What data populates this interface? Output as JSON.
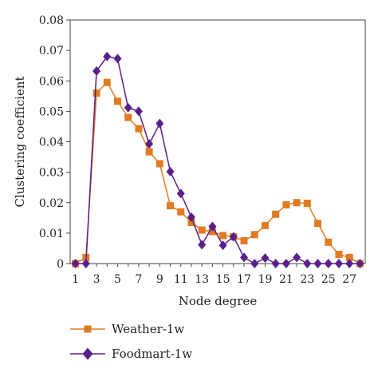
{
  "chart_data": {
    "type": "line",
    "xlabel": "Node degree",
    "ylabel": "Clustering coefficient",
    "xlim": [
      1,
      28
    ],
    "ylim": [
      0,
      0.08
    ],
    "yticks": [
      "0",
      "0.01",
      "0.02",
      "0.03",
      "0.04",
      "0.05",
      "0.06",
      "0.07",
      "0.08"
    ],
    "xticks": [
      "1",
      "3",
      "5",
      "7",
      "9",
      "11",
      "13",
      "15",
      "17",
      "19",
      "21",
      "23",
      "25",
      "27"
    ],
    "x": [
      1,
      2,
      3,
      4,
      5,
      6,
      7,
      8,
      9,
      10,
      11,
      12,
      13,
      14,
      15,
      16,
      17,
      18,
      19,
      20,
      21,
      22,
      23,
      24,
      25,
      26,
      27,
      28
    ],
    "legend_position": "bottom",
    "series": [
      {
        "name": "Weather-1w",
        "color": "#e07b22",
        "marker": "square",
        "values": [
          0,
          0.002,
          0.056,
          0.0595,
          0.0533,
          0.048,
          0.0443,
          0.0367,
          0.0328,
          0.019,
          0.017,
          0.0135,
          0.011,
          0.0105,
          0.0092,
          0.0088,
          0.0075,
          0.0095,
          0.0125,
          0.0162,
          0.0193,
          0.02,
          0.0198,
          0.0132,
          0.007,
          0.003,
          0.002,
          0
        ]
      },
      {
        "name": "Foodmart-1w",
        "color": "#5a1f8a",
        "marker": "diamond",
        "values": [
          0,
          0,
          0.0632,
          0.068,
          0.0673,
          0.0512,
          0.05,
          0.0393,
          0.046,
          0.0302,
          0.023,
          0.0152,
          0.0062,
          0.0122,
          0.006,
          0.0088,
          0.002,
          0,
          0.0018,
          0,
          0,
          0.002,
          0,
          0,
          0,
          0,
          0,
          0
        ]
      }
    ]
  }
}
